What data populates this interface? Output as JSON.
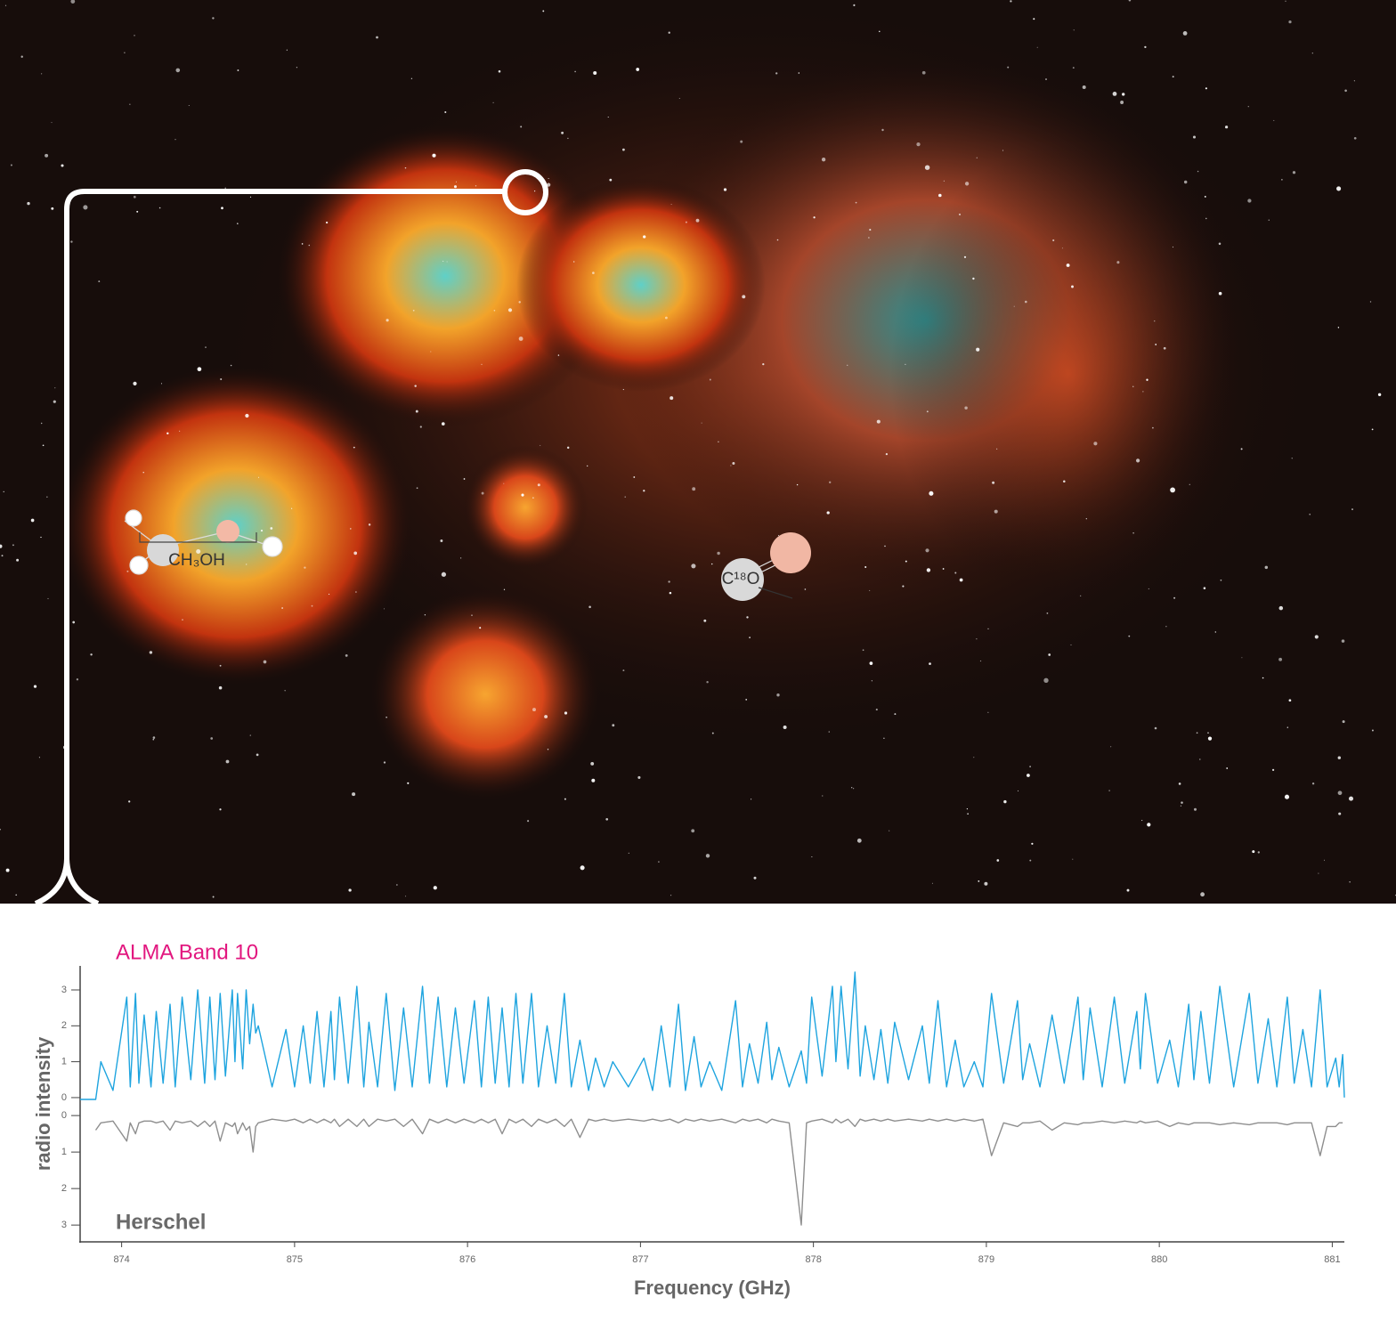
{
  "chart_data": {
    "type": "line",
    "x_label": "Frequency (GHz)",
    "y_label": "radio intensity",
    "x": [
      873.76,
      873.85,
      873.88,
      873.95,
      874.03,
      874.05,
      874.08,
      874.1,
      874.13,
      874.17,
      874.2,
      874.24,
      874.28,
      874.31,
      874.35,
      874.4,
      874.44,
      874.48,
      874.51,
      874.54,
      874.57,
      874.6,
      874.64,
      874.655,
      874.67,
      874.7,
      874.72,
      874.74,
      874.76,
      874.775,
      874.79,
      874.87,
      874.95,
      875.0,
      875.05,
      875.09,
      875.13,
      875.17,
      875.21,
      875.23,
      875.26,
      875.31,
      875.36,
      875.4,
      875.43,
      875.48,
      875.53,
      875.58,
      875.63,
      875.68,
      875.74,
      875.78,
      875.83,
      875.88,
      875.93,
      875.98,
      876.04,
      876.08,
      876.12,
      876.16,
      876.2,
      876.24,
      876.28,
      876.32,
      876.37,
      876.41,
      876.46,
      876.51,
      876.56,
      876.6,
      876.65,
      876.7,
      876.74,
      876.79,
      876.84,
      876.93,
      877.02,
      877.07,
      877.12,
      877.17,
      877.22,
      877.26,
      877.31,
      877.35,
      877.4,
      877.47,
      877.55,
      877.59,
      877.63,
      877.68,
      877.73,
      877.76,
      877.8,
      877.86,
      877.93,
      877.96,
      877.99,
      878.05,
      878.11,
      878.13,
      878.16,
      878.2,
      878.24,
      878.27,
      878.3,
      878.35,
      878.39,
      878.43,
      878.47,
      878.55,
      878.63,
      878.67,
      878.72,
      878.77,
      878.82,
      878.87,
      878.93,
      878.98,
      879.03,
      879.1,
      879.18,
      879.21,
      879.25,
      879.31,
      879.38,
      879.45,
      879.53,
      879.56,
      879.6,
      879.67,
      879.74,
      879.8,
      879.87,
      879.89,
      879.92,
      879.99,
      880.06,
      880.11,
      880.17,
      880.2,
      880.24,
      880.29,
      880.35,
      880.43,
      880.52,
      880.57,
      880.63,
      880.68,
      880.74,
      880.78,
      880.83,
      880.88,
      880.93,
      880.97,
      881.02,
      881.04,
      881.06,
      881.07
    ],
    "series": [
      {
        "name": "ALMA Band 10",
        "color": "#1ea4df",
        "label_color": "#e2177f",
        "values": [
          -0.05,
          -0.05,
          1.0,
          0.2,
          2.8,
          0.3,
          2.9,
          0.4,
          2.3,
          0.3,
          2.4,
          0.4,
          2.6,
          0.3,
          2.8,
          0.5,
          3.0,
          0.4,
          2.8,
          0.5,
          2.9,
          0.6,
          3.0,
          1.0,
          2.9,
          0.8,
          3.0,
          1.5,
          2.6,
          1.8,
          2.0,
          0.3,
          1.9,
          0.3,
          2.0,
          0.4,
          2.4,
          0.3,
          2.4,
          0.5,
          2.8,
          0.4,
          3.1,
          0.3,
          2.1,
          0.3,
          2.9,
          0.2,
          2.5,
          0.3,
          3.1,
          0.4,
          2.8,
          0.3,
          2.5,
          0.4,
          2.7,
          0.3,
          2.8,
          0.4,
          2.5,
          0.3,
          2.9,
          0.4,
          2.9,
          0.3,
          2.0,
          0.4,
          2.9,
          0.3,
          1.6,
          0.2,
          1.1,
          0.3,
          1.0,
          0.3,
          1.1,
          0.2,
          2.0,
          0.3,
          2.6,
          0.2,
          1.7,
          0.3,
          1.0,
          0.2,
          2.7,
          0.3,
          1.5,
          0.4,
          2.1,
          0.5,
          1.4,
          0.3,
          1.3,
          0.4,
          2.8,
          0.6,
          3.1,
          1.0,
          3.1,
          0.8,
          3.5,
          0.6,
          2.0,
          0.5,
          1.9,
          0.4,
          2.1,
          0.5,
          2.0,
          0.4,
          2.7,
          0.3,
          1.6,
          0.3,
          1.0,
          0.3,
          2.9,
          0.4,
          2.7,
          0.5,
          1.5,
          0.3,
          2.3,
          0.4,
          2.8,
          0.5,
          2.5,
          0.3,
          2.8,
          0.4,
          2.4,
          0.8,
          2.9,
          0.4,
          1.6,
          0.3,
          2.6,
          0.5,
          2.4,
          0.4,
          3.1,
          0.3,
          2.9,
          0.4,
          2.2,
          0.3,
          2.8,
          0.4,
          1.9,
          0.3,
          3.0,
          0.3,
          1.1,
          0.3,
          1.2,
          0.0
        ]
      },
      {
        "name": "Herschel",
        "color": "#8e8e8e",
        "label_color": "#6a6a6a",
        "axis": "y2",
        "values": [
          null,
          0.4,
          0.2,
          0.15,
          0.7,
          0.2,
          0.5,
          0.2,
          0.15,
          0.15,
          0.2,
          0.15,
          0.4,
          0.15,
          0.2,
          0.15,
          0.3,
          0.15,
          0.3,
          0.15,
          0.7,
          0.2,
          0.3,
          0.2,
          0.5,
          0.2,
          0.4,
          0.3,
          1.0,
          0.3,
          0.2,
          0.1,
          0.15,
          0.1,
          0.2,
          0.1,
          0.2,
          0.1,
          0.2,
          0.1,
          0.3,
          0.1,
          0.3,
          0.1,
          0.3,
          0.1,
          0.15,
          0.1,
          0.3,
          0.1,
          0.5,
          0.1,
          0.2,
          0.1,
          0.2,
          0.1,
          0.2,
          0.1,
          0.2,
          0.1,
          0.5,
          0.1,
          0.2,
          0.1,
          0.3,
          0.1,
          0.2,
          0.1,
          0.3,
          0.1,
          0.6,
          0.1,
          0.15,
          0.1,
          0.15,
          0.1,
          0.15,
          0.1,
          0.15,
          0.1,
          0.2,
          0.1,
          0.15,
          0.1,
          0.15,
          0.1,
          0.2,
          0.1,
          0.15,
          0.1,
          0.2,
          0.1,
          0.15,
          0.2,
          3.0,
          0.2,
          0.15,
          0.1,
          0.2,
          0.1,
          0.2,
          0.1,
          0.3,
          0.1,
          0.15,
          0.1,
          0.15,
          0.1,
          0.15,
          0.1,
          0.15,
          0.1,
          0.15,
          0.1,
          0.15,
          0.1,
          0.15,
          0.1,
          1.1,
          0.2,
          0.3,
          0.2,
          0.2,
          0.15,
          0.4,
          0.2,
          0.25,
          0.2,
          0.2,
          0.15,
          0.2,
          0.15,
          0.2,
          0.15,
          0.2,
          0.15,
          0.3,
          0.2,
          0.25,
          0.2,
          0.2,
          0.2,
          0.25,
          0.2,
          0.25,
          0.2,
          0.2,
          0.2,
          0.25,
          0.2,
          0.2,
          0.2,
          1.1,
          0.3,
          0.3,
          0.2,
          0.2,
          null
        ]
      }
    ],
    "xlim": [
      873.76,
      881.07
    ],
    "xticks": [
      874,
      875,
      876,
      877,
      878,
      879,
      880,
      881
    ],
    "ylim": [
      -4.02,
      3.67
    ],
    "yticks": [
      0,
      1,
      2,
      3
    ],
    "y2lim": [
      3.46,
      -4.1
    ],
    "y2ticks": [
      0,
      1,
      2,
      3
    ],
    "annotations": [
      "CH₃OH",
      "C¹⁸O"
    ]
  }
}
